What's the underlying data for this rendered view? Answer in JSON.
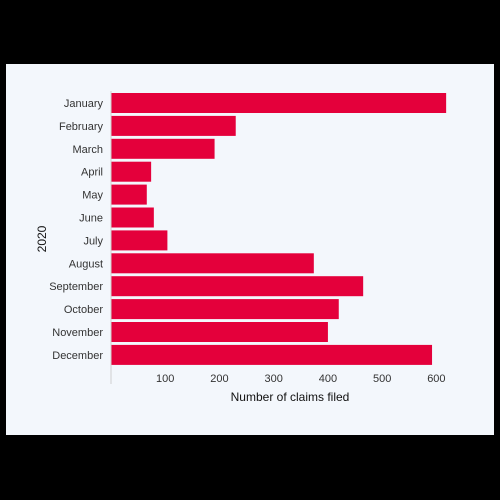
{
  "chart_data": {
    "type": "bar",
    "orientation": "horizontal",
    "categories": [
      "January",
      "February",
      "March",
      "April",
      "May",
      "June",
      "July",
      "August",
      "September",
      "October",
      "November",
      "December"
    ],
    "values": [
      618,
      230,
      191,
      74,
      66,
      79,
      104,
      374,
      465,
      420,
      400,
      592
    ],
    "xlabel": "Number of claims filed",
    "ylabel": "2020",
    "xticks": [
      100,
      200,
      300,
      400,
      500,
      600
    ],
    "xlim": [
      0,
      650
    ],
    "bar_color": "#E4003B",
    "background_color": "#F3F7FC",
    "grid": false,
    "legend": "none"
  }
}
